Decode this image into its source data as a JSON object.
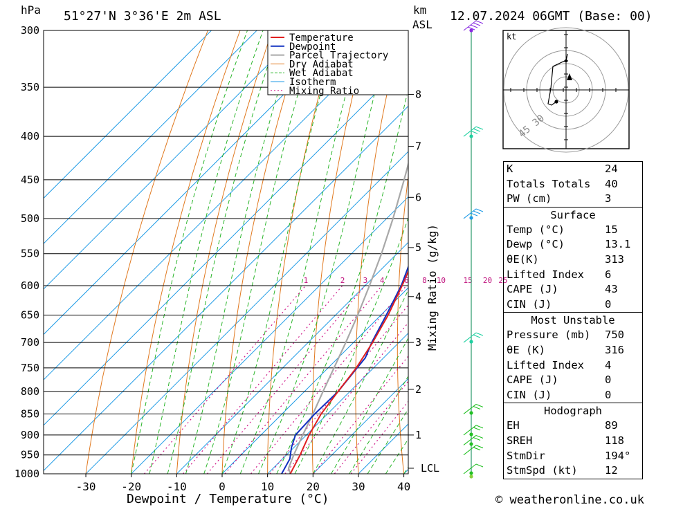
{
  "header": {
    "pressure_unit": "hPa",
    "location": "51°27'N  3°36'E  2m  ASL",
    "height_unit_top": "km",
    "height_unit_bottom": "ASL",
    "datetime": "12.07.2024  06GMT  (Base: 00)"
  },
  "footer": {
    "credit": "© weatheronline.co.uk"
  },
  "chart_data": {
    "type": "line",
    "subtype": "skew-T log-P diagram",
    "xlabel": "Dewpoint / Temperature (°C)",
    "ylabel": "hPa",
    "right_label": "Mixing Ratio (g/kg)",
    "x_ticks": [
      -30,
      -20,
      -10,
      0,
      10,
      20,
      30,
      40
    ],
    "pressure_levels": [
      300,
      350,
      400,
      450,
      500,
      550,
      600,
      650,
      700,
      750,
      800,
      850,
      900,
      950,
      1000
    ],
    "height_km_ticks": [
      {
        "km": 1,
        "p": 900
      },
      {
        "km": 2,
        "p": 795
      },
      {
        "km": 3,
        "p": 700
      },
      {
        "km": 4,
        "p": 618
      },
      {
        "km": 5,
        "p": 541
      },
      {
        "km": 6,
        "p": 472
      },
      {
        "km": 7,
        "p": 411
      },
      {
        "km": 8,
        "p": 357
      }
    ],
    "lcl_label": "LCL",
    "lcl_pressure": 985,
    "mixing_ratio_labels": [
      "1",
      "2",
      "3",
      "4",
      "6",
      "8",
      "10",
      "15",
      "20",
      "25"
    ],
    "legend": [
      "Temperature",
      "Dewpoint",
      "Parcel Trajectory",
      "Dry Adiabat",
      "Wet Adiabat",
      "Isotherm",
      "Mixing Ratio"
    ],
    "series": [
      {
        "name": "Temperature",
        "color": "#e02020",
        "points": [
          [
            1000,
            15
          ],
          [
            950,
            13
          ],
          [
            900,
            10.6
          ],
          [
            850,
            8.6
          ],
          [
            800,
            7.4
          ],
          [
            750,
            6.2
          ],
          [
            700,
            4.2
          ],
          [
            650,
            1.6
          ],
          [
            600,
            -1.8
          ],
          [
            550,
            -5.8
          ],
          [
            500,
            -10.8
          ],
          [
            450,
            -16.6
          ],
          [
            400,
            -24
          ],
          [
            350,
            -32.6
          ],
          [
            300,
            -42.6
          ]
        ]
      },
      {
        "name": "Dewpoint",
        "color": "#1030c0",
        "points": [
          [
            1000,
            13.1
          ],
          [
            960,
            11.6
          ],
          [
            930,
            9.4
          ],
          [
            900,
            7.6
          ],
          [
            850,
            7.2
          ],
          [
            800,
            7.4
          ],
          [
            760,
            6.6
          ],
          [
            730,
            6.0
          ],
          [
            700,
            4
          ],
          [
            650,
            1.2
          ],
          [
            600,
            -2.0
          ],
          [
            550,
            -6.4
          ],
          [
            500,
            -11.4
          ],
          [
            450,
            -17.6
          ],
          [
            400,
            -26
          ],
          [
            350,
            -38
          ],
          [
            320,
            -47
          ],
          [
            300,
            -55
          ]
        ]
      },
      {
        "name": "Parcel Trajectory",
        "color": "#a8a8a8",
        "points": [
          [
            1000,
            15
          ],
          [
            985,
            13.4
          ],
          [
            950,
            11.6
          ],
          [
            900,
            9.2
          ],
          [
            850,
            6.8
          ],
          [
            800,
            4.1
          ],
          [
            750,
            1.3
          ],
          [
            700,
            -1.7
          ],
          [
            650,
            -5.1
          ],
          [
            600,
            -9.0
          ],
          [
            550,
            -13.4
          ],
          [
            500,
            -18.6
          ],
          [
            450,
            -24.7
          ],
          [
            400,
            -31.7
          ],
          [
            350,
            -40.2
          ],
          [
            300,
            -50.4
          ]
        ]
      }
    ],
    "wind_barbs": [
      {
        "p": 1000,
        "speed_kt": 10
      },
      {
        "p": 950,
        "speed_kt": 15
      },
      {
        "p": 925,
        "speed_kt": 15
      },
      {
        "p": 900,
        "speed_kt": 15
      },
      {
        "p": 850,
        "speed_kt": 15
      },
      {
        "p": 700,
        "speed_kt": 15
      },
      {
        "p": 500,
        "speed_kt": 25
      },
      {
        "p": 400,
        "speed_kt": 30
      },
      {
        "p": 300,
        "speed_kt": 35
      }
    ],
    "hodograph": {
      "unit": "kt",
      "ring_labels": [
        "30",
        "45"
      ],
      "trace_color": "#000000"
    }
  },
  "indices": {
    "general": [
      {
        "key": "K",
        "value": "24"
      },
      {
        "key": "Totals Totals",
        "value": "40"
      },
      {
        "key": "PW (cm)",
        "value": "3"
      }
    ],
    "surface_title": "Surface",
    "surface": [
      {
        "key": "Temp (°C)",
        "value": "15"
      },
      {
        "key": "Dewp (°C)",
        "value": "13.1"
      },
      {
        "key": "θE(K)",
        "value": "313"
      },
      {
        "key": "Lifted Index",
        "value": "6"
      },
      {
        "key": "CAPE (J)",
        "value": "43"
      },
      {
        "key": "CIN (J)",
        "value": "0"
      }
    ],
    "unstable_title": "Most Unstable",
    "unstable": [
      {
        "key": "Pressure (mb)",
        "value": "750"
      },
      {
        "key": "θE (K)",
        "value": "316"
      },
      {
        "key": "Lifted Index",
        "value": "4"
      },
      {
        "key": "CAPE (J)",
        "value": "0"
      },
      {
        "key": "CIN (J)",
        "value": "0"
      }
    ],
    "hodograph_title": "Hodograph",
    "hodograph": [
      {
        "key": "EH",
        "value": "89"
      },
      {
        "key": "SREH",
        "value": "118"
      },
      {
        "key": "StmDir",
        "value": "194°"
      },
      {
        "key": "StmSpd (kt)",
        "value": "12"
      }
    ]
  }
}
